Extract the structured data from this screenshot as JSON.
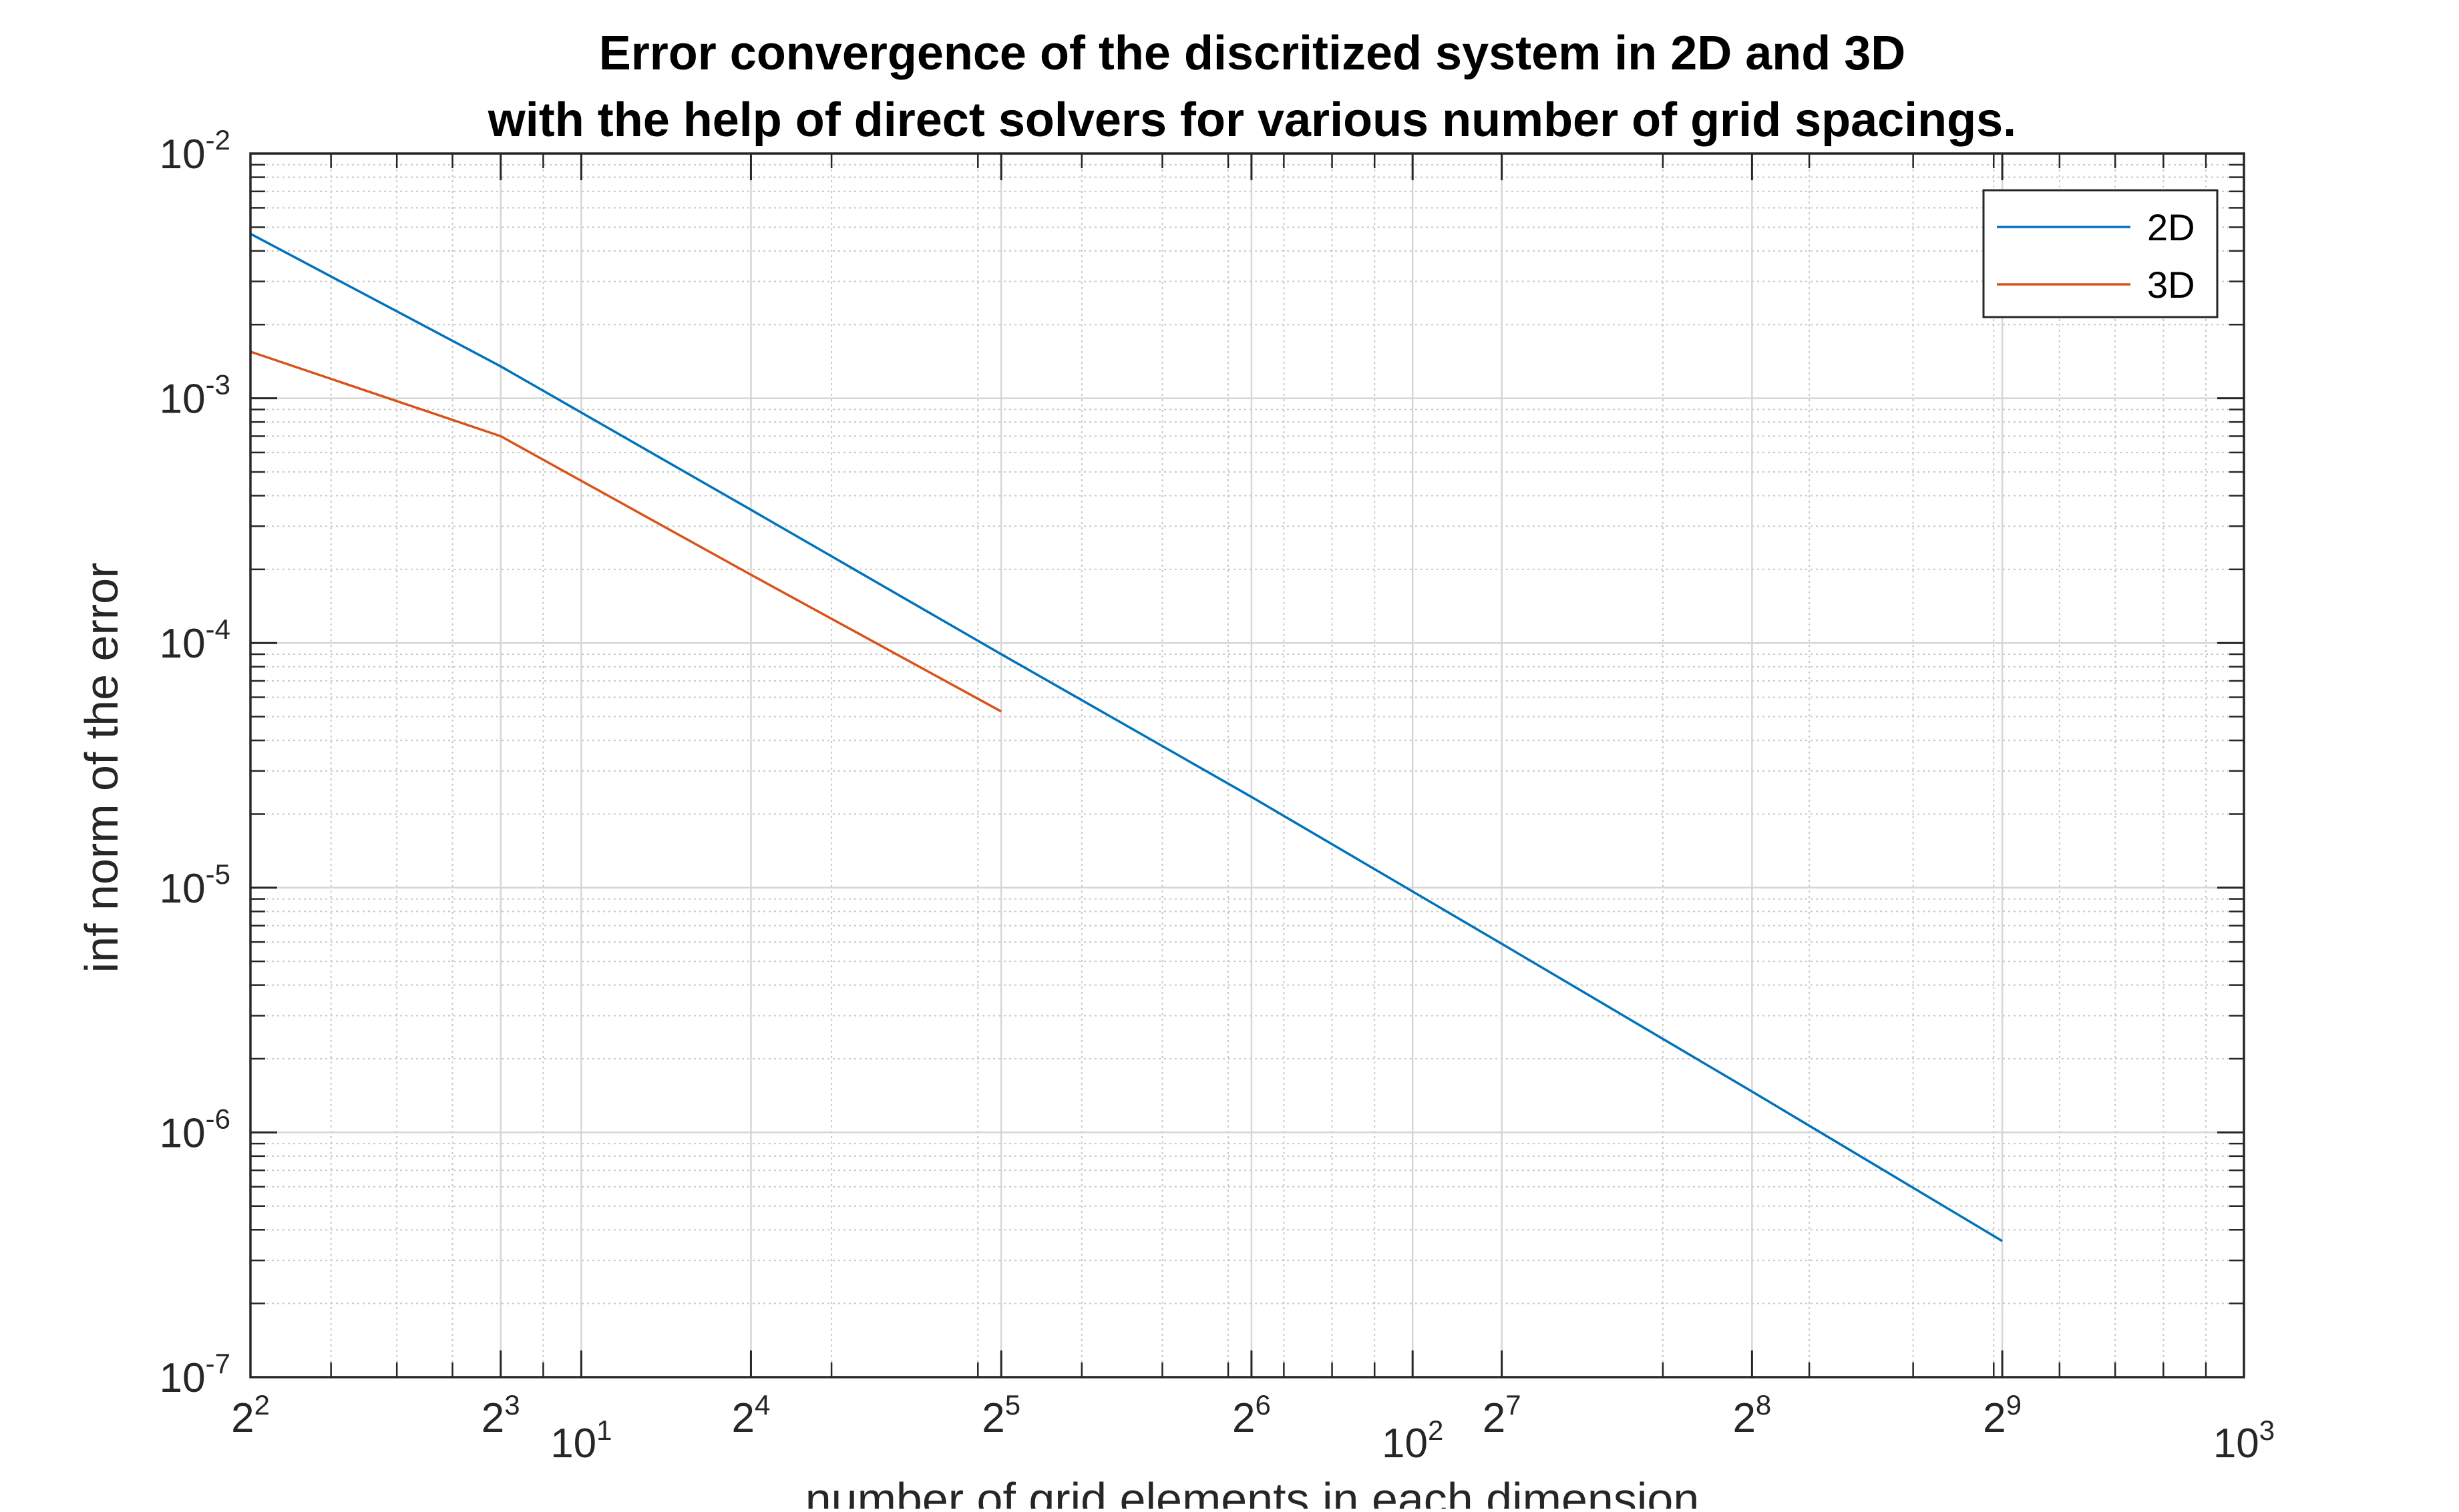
{
  "chart_data": {
    "type": "line",
    "title": [
      "Error convergence of the discritized system in 2D and 3D",
      "with the help of direct solvers for various number of grid spacings."
    ],
    "xlabel": "number of grid elements in each dimension",
    "ylabel": "inf norm of the error",
    "xscale": "log",
    "yscale": "log",
    "xlim": [
      4,
      1000
    ],
    "ylim": [
      1e-07,
      0.01
    ],
    "grid": true,
    "minor_grid": true,
    "legend": {
      "position": "top-right",
      "entries": [
        "2D",
        "3D"
      ]
    },
    "x_ticks": [
      {
        "value": 4,
        "base": "2",
        "exp": "2"
      },
      {
        "value": 8,
        "base": "2",
        "exp": "3"
      },
      {
        "value": 10,
        "base": "10",
        "exp": "1"
      },
      {
        "value": 16,
        "base": "2",
        "exp": "4"
      },
      {
        "value": 32,
        "base": "2",
        "exp": "5"
      },
      {
        "value": 64,
        "base": "2",
        "exp": "6"
      },
      {
        "value": 100,
        "base": "10",
        "exp": "2"
      },
      {
        "value": 128,
        "base": "2",
        "exp": "7"
      },
      {
        "value": 256,
        "base": "2",
        "exp": "8"
      },
      {
        "value": 512,
        "base": "2",
        "exp": "9"
      },
      {
        "value": 1000,
        "base": "10",
        "exp": "3"
      }
    ],
    "y_ticks": [
      {
        "value": 1e-07,
        "base": "10",
        "exp": "-7"
      },
      {
        "value": 1e-06,
        "base": "10",
        "exp": "-6"
      },
      {
        "value": 1e-05,
        "base": "10",
        "exp": "-5"
      },
      {
        "value": 0.0001,
        "base": "10",
        "exp": "-4"
      },
      {
        "value": 0.001,
        "base": "10",
        "exp": "-3"
      },
      {
        "value": 0.01,
        "base": "10",
        "exp": "-2"
      }
    ],
    "series": [
      {
        "name": "2D",
        "color": "#0072BD",
        "x": [
          4,
          8,
          16,
          32,
          64,
          128,
          256,
          512
        ],
        "y": [
          0.0047,
          0.00135,
          0.00035,
          9e-05,
          2.35e-05,
          5.9e-06,
          1.47e-06,
          3.6e-07
        ]
      },
      {
        "name": "3D",
        "color": "#D95319",
        "x": [
          4,
          8,
          16,
          32
        ],
        "y": [
          0.00155,
          0.0007,
          0.00019,
          5.25e-05
        ]
      }
    ]
  }
}
